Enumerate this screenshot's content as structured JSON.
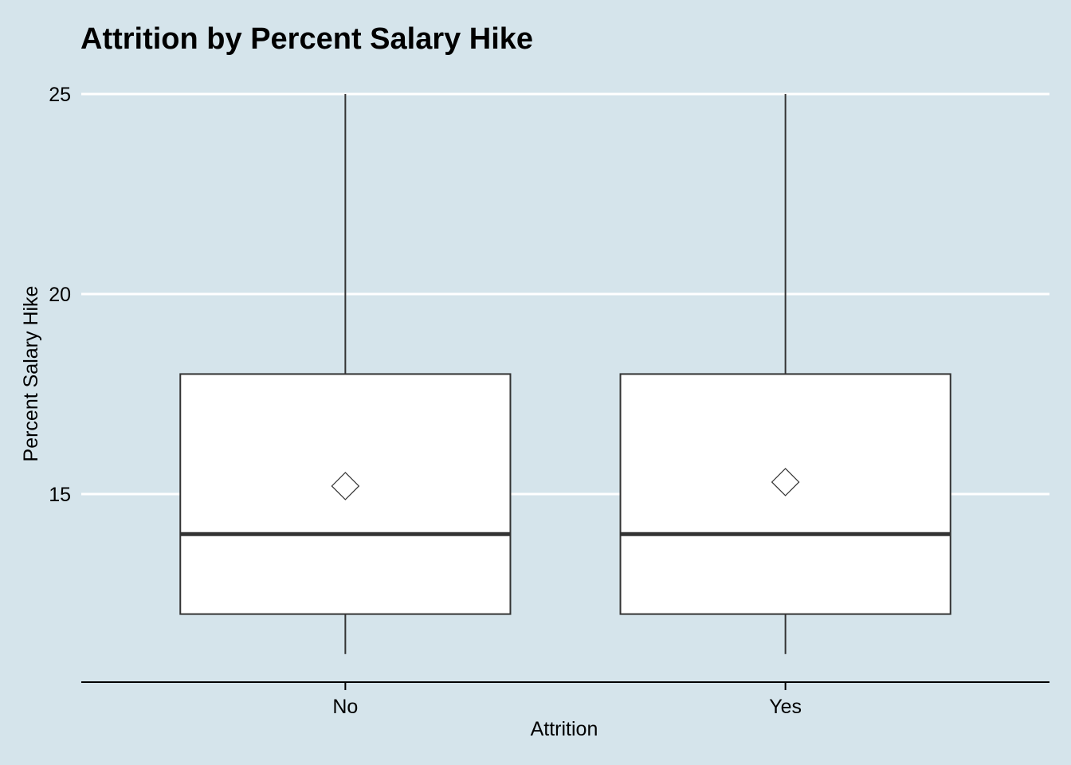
{
  "chart_data": {
    "type": "box",
    "title": "Attrition by Percent Salary Hike",
    "xlabel": "Attrition",
    "ylabel": "Percent Salary Hike",
    "categories": [
      "No",
      "Yes"
    ],
    "ylim": [
      11,
      25
    ],
    "y_ticks": [
      15,
      20,
      25
    ],
    "grid": "horizontal",
    "boxes": [
      {
        "category": "No",
        "min": 11,
        "q1": 12,
        "median": 14,
        "q3": 18,
        "max": 25,
        "mean": 15.2
      },
      {
        "category": "Yes",
        "min": 11,
        "q1": 12,
        "median": 14,
        "q3": 18,
        "max": 25,
        "mean": 15.3
      }
    ],
    "colors": {
      "background": "#d5e4eb",
      "grid": "#ffffff",
      "box_fill": "#ffffff",
      "box_stroke": "#333333",
      "axis": "#000000"
    }
  }
}
